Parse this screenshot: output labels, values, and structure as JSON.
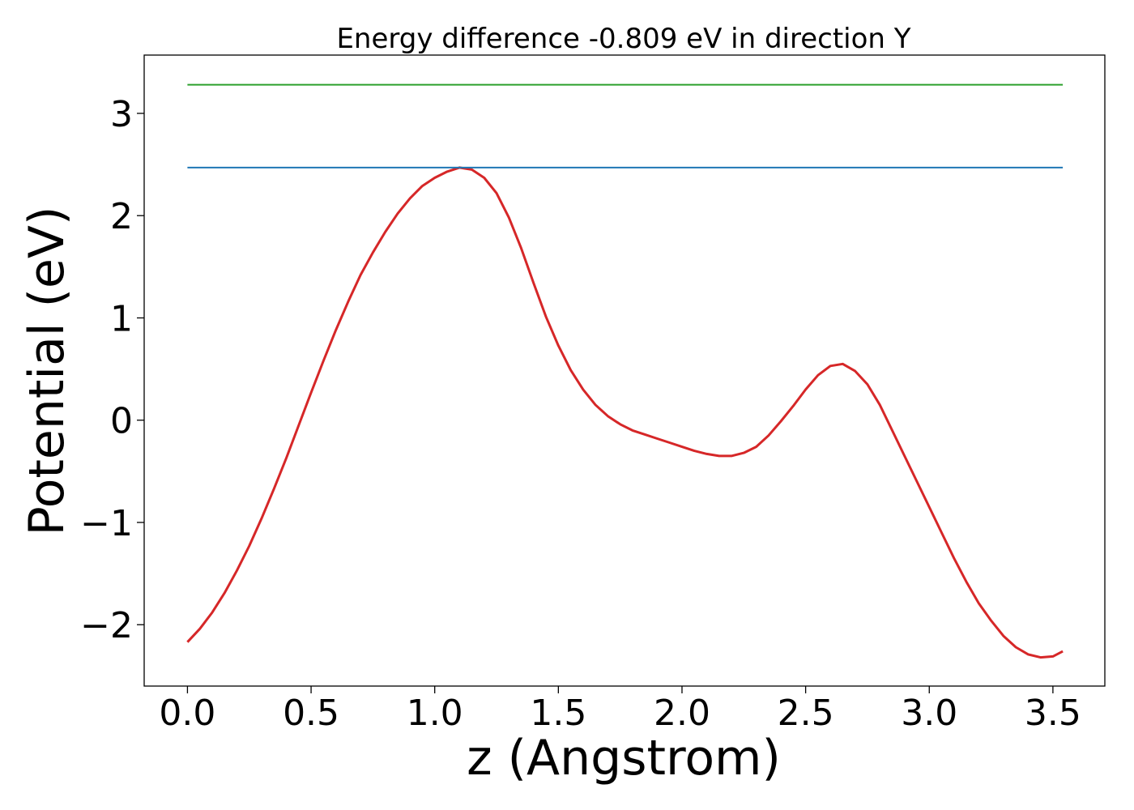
{
  "chart_data": {
    "type": "line",
    "title": "Energy difference -0.809 eV in direction Y",
    "xlabel": "z (Angstrom)",
    "ylabel": "Potential (eV)",
    "xlim": [
      -0.175,
      3.71
    ],
    "ylim": [
      -2.6,
      3.57
    ],
    "x_ticks": [
      0.0,
      0.5,
      1.0,
      1.5,
      2.0,
      2.5,
      3.0,
      3.5
    ],
    "x_tick_labels": [
      "0.0",
      "0.5",
      "1.0",
      "1.5",
      "2.0",
      "2.5",
      "3.0",
      "3.5"
    ],
    "y_ticks": [
      -2,
      -1,
      0,
      1,
      2,
      3
    ],
    "y_tick_labels": [
      "−2",
      "−1",
      "0",
      "1",
      "2",
      "3"
    ],
    "grid": false,
    "series": [
      {
        "color": "#d62728",
        "x": [
          0.0,
          0.05,
          0.1,
          0.15,
          0.2,
          0.25,
          0.3,
          0.35,
          0.4,
          0.45,
          0.5,
          0.55,
          0.6,
          0.65,
          0.7,
          0.75,
          0.8,
          0.85,
          0.9,
          0.95,
          1.0,
          1.05,
          1.1,
          1.15,
          1.2,
          1.25,
          1.3,
          1.35,
          1.4,
          1.45,
          1.5,
          1.55,
          1.6,
          1.65,
          1.7,
          1.75,
          1.8,
          1.85,
          1.9,
          1.95,
          2.0,
          2.05,
          2.1,
          2.15,
          2.2,
          2.25,
          2.3,
          2.35,
          2.4,
          2.45,
          2.5,
          2.55,
          2.6,
          2.65,
          2.7,
          2.75,
          2.8,
          2.85,
          2.9,
          2.95,
          3.0,
          3.05,
          3.1,
          3.15,
          3.2,
          3.25,
          3.3,
          3.35,
          3.4,
          3.45,
          3.5,
          3.54
        ],
        "y": [
          -2.17,
          -2.04,
          -1.88,
          -1.69,
          -1.47,
          -1.23,
          -0.96,
          -0.67,
          -0.37,
          -0.05,
          0.27,
          0.58,
          0.88,
          1.16,
          1.42,
          1.64,
          1.84,
          2.02,
          2.17,
          2.29,
          2.37,
          2.43,
          2.47,
          2.45,
          2.37,
          2.22,
          1.98,
          1.68,
          1.34,
          1.01,
          0.73,
          0.49,
          0.3,
          0.15,
          0.04,
          -0.04,
          -0.1,
          -0.14,
          -0.18,
          -0.22,
          -0.26,
          -0.3,
          -0.33,
          -0.35,
          -0.35,
          -0.32,
          -0.26,
          -0.15,
          -0.01,
          0.14,
          0.3,
          0.44,
          0.53,
          0.55,
          0.48,
          0.35,
          0.15,
          -0.1,
          -0.35,
          -0.6,
          -0.85,
          -1.1,
          -1.35,
          -1.58,
          -1.79,
          -1.96,
          -2.11,
          -2.22,
          -2.29,
          -2.32,
          -2.31,
          -2.26
        ]
      },
      {
        "color": "#1f77b4",
        "x": [
          0.0,
          3.54
        ],
        "y": [
          2.47,
          2.47
        ]
      },
      {
        "color": "#2ca02c",
        "x": [
          0.0,
          3.54
        ],
        "y": [
          3.28,
          3.28
        ]
      }
    ]
  }
}
